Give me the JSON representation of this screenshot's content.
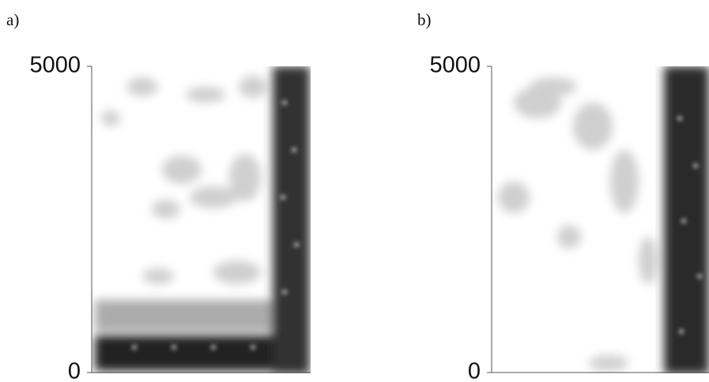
{
  "chart_data": [
    {
      "type": "heatmap",
      "label": "a)",
      "ylim": [
        0,
        5000
      ],
      "yticks": [
        0,
        5000
      ]
    },
    {
      "type": "heatmap",
      "label": "b)",
      "ylim": [
        0,
        5000
      ],
      "yticks": [
        0,
        5000
      ]
    }
  ]
}
